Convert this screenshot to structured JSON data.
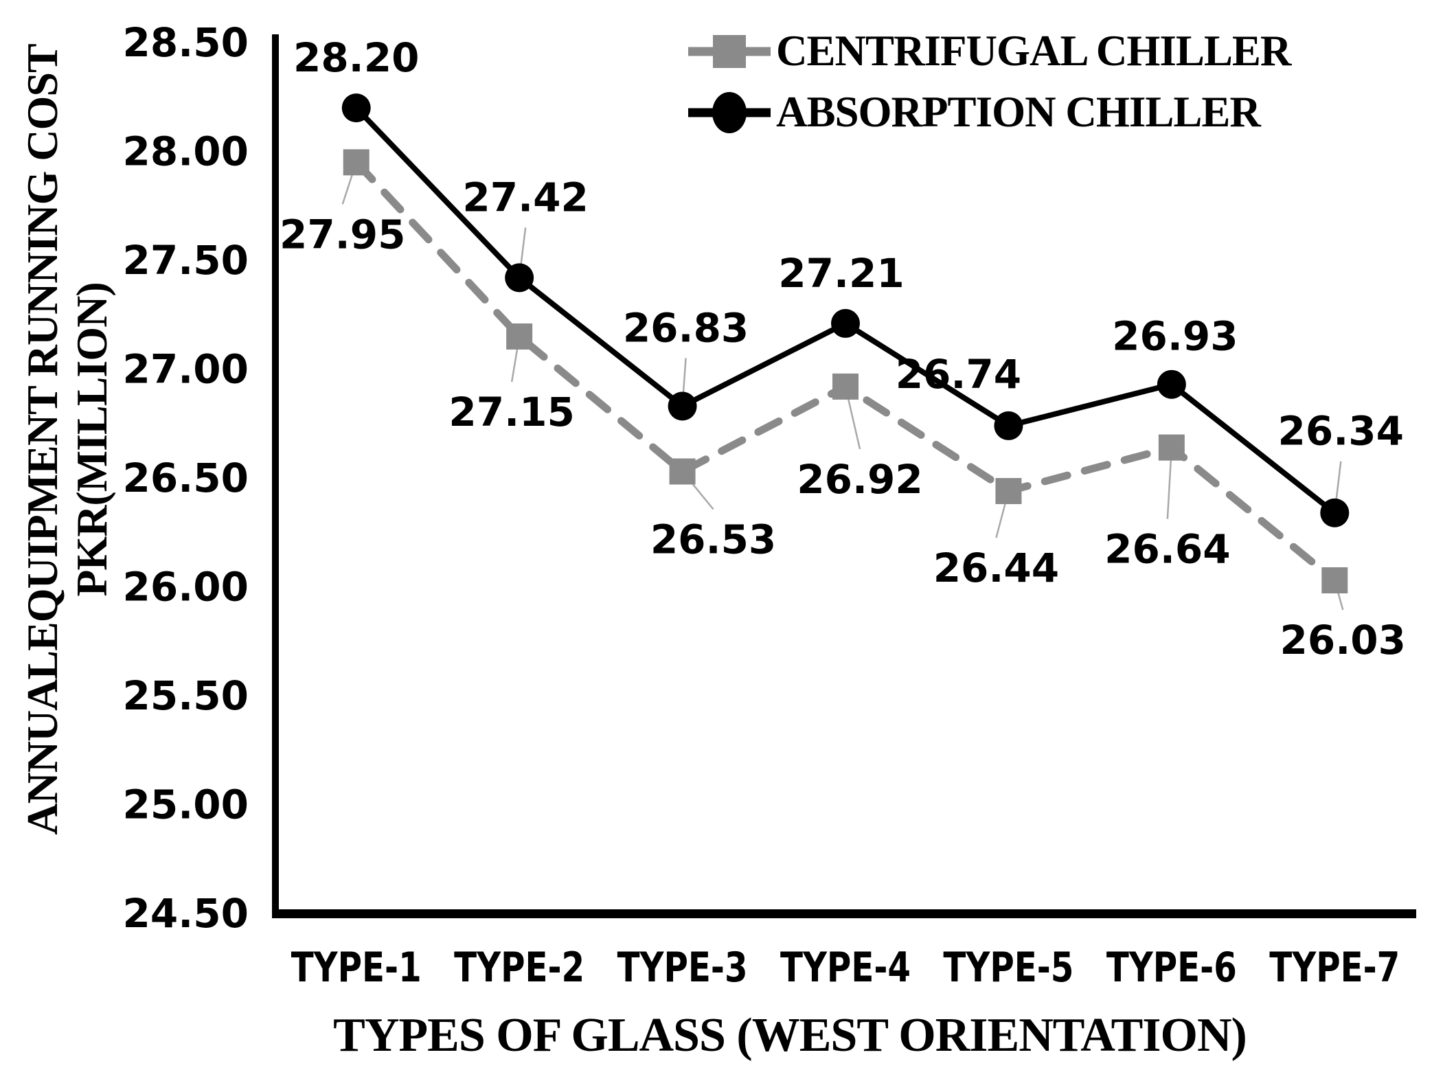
{
  "background_color": "#ffffff",
  "chart_data": {
    "type": "line",
    "title": "",
    "xlabel": "TYPES OF GLASS (WEST ORIENTATION)",
    "ylabel_line1": "ANNUALEQUIPMENT RUNNING COST",
    "ylabel_line2": "PKR(MILLION)",
    "categories": [
      "TYPE-1",
      "TYPE-2",
      "TYPE-3",
      "TYPE-4",
      "TYPE-5",
      "TYPE-6",
      "TYPE-7"
    ],
    "ylim": [
      24.5,
      28.5
    ],
    "ytick_step": 0.5,
    "yticks": [
      "28.50",
      "28.00",
      "27.50",
      "27.00",
      "26.50",
      "26.00",
      "25.50",
      "25.00",
      "24.50"
    ],
    "grid": false,
    "legend_position": "top-right",
    "axis_color": "#000000",
    "leader_line_color": "#a8a8a8",
    "series": [
      {
        "name": "CENTRIFUGAL CHILLER",
        "values": [
          27.95,
          27.15,
          26.53,
          26.92,
          26.44,
          26.64,
          26.03
        ],
        "color": "#8a8a8a",
        "marker": "square",
        "line_style": "dashed",
        "label_offsets": [
          [
            -20,
            105
          ],
          [
            -11,
            110
          ],
          [
            45,
            99
          ],
          [
            21,
            135
          ],
          [
            -18,
            112
          ],
          [
            -6,
            148
          ],
          [
            12,
            87
          ]
        ],
        "leaders": [
          true,
          true,
          true,
          true,
          true,
          true,
          true
        ]
      },
      {
        "name": "ABSORPTION CHILLER",
        "values": [
          28.2,
          27.42,
          26.83,
          27.21,
          26.74,
          26.93,
          26.34
        ],
        "color": "#000000",
        "marker": "circle",
        "line_style": "solid",
        "label_offsets": [
          [
            0,
            -73
          ],
          [
            9,
            -117
          ],
          [
            5,
            -114
          ],
          [
            -6,
            -73
          ],
          [
            -73,
            -75
          ],
          [
            5,
            -70
          ],
          [
            9,
            -119
          ]
        ],
        "leaders": [
          false,
          true,
          true,
          false,
          false,
          false,
          true
        ]
      }
    ]
  }
}
